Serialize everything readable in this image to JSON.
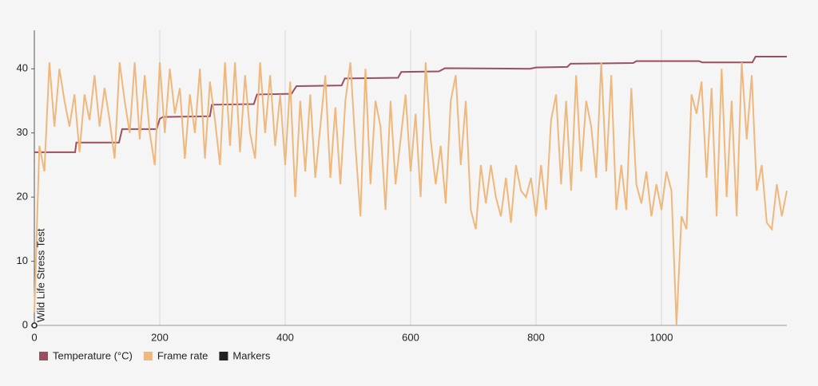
{
  "chart_data": {
    "type": "line",
    "xlim": [
      0,
      1200
    ],
    "xticks": [
      0,
      200,
      400,
      600,
      800,
      1000
    ],
    "ylim": [
      0,
      46
    ],
    "yticks": [
      0,
      10,
      20,
      30,
      40
    ],
    "grid": true,
    "legend": "bottom-left",
    "series": [
      {
        "name": "Temperature (°C)",
        "color": "#9b5060",
        "x": [
          0,
          65,
          67,
          135,
          140,
          195,
          200,
          205,
          280,
          283,
          350,
          355,
          410,
          418,
          490,
          495,
          580,
          585,
          645,
          655,
          790,
          800,
          850,
          855,
          955,
          960,
          1060,
          1065,
          1145,
          1150,
          1200
        ],
        "values": [
          27,
          27,
          28.5,
          28.5,
          30.6,
          30.6,
          32.2,
          32.5,
          32.6,
          34.4,
          34.5,
          36,
          36.1,
          37.3,
          37.4,
          38.5,
          38.6,
          39.5,
          39.6,
          40.1,
          40,
          40.2,
          40.3,
          40.8,
          40.9,
          41.2,
          41.2,
          41,
          41,
          41.9,
          41.9
        ]
      },
      {
        "name": "Frame rate",
        "color": "#f0b77c",
        "x": [
          0,
          8,
          16,
          24,
          32,
          40,
          48,
          56,
          64,
          72,
          80,
          88,
          96,
          104,
          112,
          120,
          128,
          136,
          144,
          152,
          160,
          168,
          176,
          184,
          192,
          200,
          208,
          216,
          224,
          232,
          240,
          248,
          256,
          264,
          272,
          280,
          288,
          296,
          304,
          312,
          320,
          328,
          336,
          344,
          352,
          360,
          368,
          376,
          384,
          392,
          400,
          408,
          416,
          424,
          432,
          440,
          448,
          456,
          464,
          472,
          480,
          488,
          496,
          504,
          512,
          520,
          528,
          536,
          544,
          552,
          560,
          568,
          576,
          584,
          592,
          600,
          608,
          616,
          624,
          632,
          640,
          648,
          656,
          664,
          672,
          680,
          688,
          696,
          704,
          712,
          720,
          728,
          736,
          744,
          752,
          760,
          768,
          776,
          784,
          792,
          800,
          808,
          816,
          824,
          832,
          840,
          848,
          856,
          864,
          872,
          880,
          888,
          896,
          904,
          912,
          920,
          928,
          936,
          944,
          952,
          960,
          968,
          976,
          984,
          992,
          1000,
          1008,
          1016,
          1024,
          1032,
          1040,
          1048,
          1056,
          1064,
          1072,
          1080,
          1088,
          1096,
          1104,
          1112,
          1120,
          1128,
          1136,
          1144,
          1152,
          1160,
          1168,
          1176,
          1184,
          1192,
          1200
        ],
        "values": [
          2,
          28,
          24,
          41,
          31,
          40,
          35,
          31,
          36,
          27,
          36,
          32,
          39,
          31,
          37,
          32,
          26,
          41,
          35,
          30,
          41,
          29,
          39,
          30,
          25,
          41,
          30,
          40,
          33,
          37,
          26,
          36,
          30,
          40,
          26,
          38,
          32,
          25,
          41,
          28,
          41,
          27,
          39,
          30,
          26,
          41,
          30,
          39,
          28,
          36,
          25,
          38,
          20,
          35,
          24,
          36,
          23,
          31,
          39,
          23,
          34,
          22,
          35,
          41,
          28,
          17,
          40,
          22,
          35,
          31,
          18,
          35,
          22,
          29,
          36,
          24,
          33,
          20,
          41,
          29,
          22,
          28,
          19,
          35,
          39,
          25,
          35,
          18,
          15,
          25,
          19,
          25,
          20,
          17,
          23,
          16,
          25,
          21,
          20,
          23,
          17,
          25,
          18,
          32,
          36,
          22,
          35,
          21,
          39,
          24,
          35,
          31,
          23,
          41,
          24,
          39,
          18,
          25,
          18,
          37,
          22,
          19,
          24,
          17,
          22,
          18,
          24,
          21,
          0,
          17,
          15,
          36,
          33,
          38,
          23,
          37,
          17,
          40,
          20,
          35,
          17,
          41,
          29,
          39,
          21,
          25,
          16,
          15,
          22,
          17,
          21
        ]
      },
      {
        "name": "Markers",
        "color": "#222222",
        "x": [
          0
        ],
        "labels": [
          "Wild Life Stress Test"
        ]
      }
    ]
  }
}
